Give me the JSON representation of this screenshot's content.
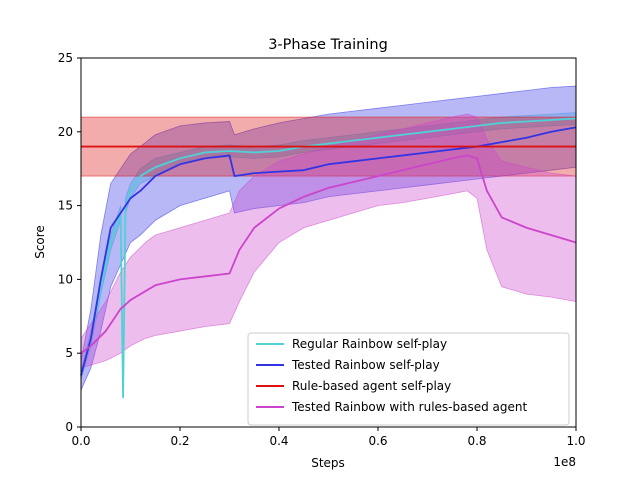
{
  "chart_data": {
    "type": "line",
    "title": "3-Phase Training",
    "xlabel": "Steps",
    "ylabel": "Score",
    "x_offset_label": "1e8",
    "xlim": [
      0,
      1.0
    ],
    "ylim": [
      0,
      25
    ],
    "xticks": [
      "0.0",
      "0.2",
      "0.4",
      "0.6",
      "0.8",
      "1.0"
    ],
    "yticks": [
      "0",
      "5",
      "10",
      "15",
      "20",
      "25"
    ],
    "grid": false,
    "legend_position": "lower-right",
    "series": [
      {
        "name": "Regular Rainbow self-play",
        "color": "#4fd1d6",
        "x": [
          0.0,
          0.02,
          0.04,
          0.06,
          0.08,
          0.085,
          0.09,
          0.1,
          0.12,
          0.15,
          0.2,
          0.25,
          0.3,
          0.35,
          0.4,
          0.45,
          0.5,
          0.55,
          0.6,
          0.65,
          0.7,
          0.75,
          0.8,
          0.85,
          0.9,
          0.95,
          1.0
        ],
        "mean": [
          3.5,
          6.0,
          9.5,
          12.5,
          14.5,
          2.0,
          15.0,
          16.0,
          17.0,
          17.6,
          18.2,
          18.6,
          18.7,
          18.6,
          18.7,
          19.0,
          19.2,
          19.4,
          19.6,
          19.8,
          20.0,
          20.2,
          20.4,
          20.6,
          20.7,
          20.8,
          20.9
        ],
        "lower": [
          3.2,
          5.5,
          9.0,
          12.0,
          14.0,
          2.0,
          14.5,
          15.5,
          16.5,
          17.0,
          17.8,
          18.2,
          18.3,
          18.2,
          18.3,
          18.6,
          18.8,
          19.0,
          19.2,
          19.4,
          19.6,
          19.8,
          20.0,
          20.2,
          20.3,
          20.4,
          20.5
        ],
        "upper": [
          3.8,
          6.5,
          10.0,
          13.0,
          15.0,
          2.0,
          15.5,
          16.5,
          17.5,
          18.2,
          18.6,
          19.0,
          19.1,
          19.0,
          19.1,
          19.4,
          19.6,
          19.8,
          20.0,
          20.2,
          20.4,
          20.6,
          20.8,
          21.0,
          21.1,
          21.2,
          21.3
        ]
      },
      {
        "name": "Tested Rainbow self-play",
        "color": "#3333e6",
        "x": [
          0.0,
          0.02,
          0.04,
          0.06,
          0.08,
          0.1,
          0.12,
          0.15,
          0.2,
          0.25,
          0.3,
          0.31,
          0.35,
          0.4,
          0.45,
          0.5,
          0.55,
          0.6,
          0.65,
          0.7,
          0.75,
          0.8,
          0.85,
          0.9,
          0.95,
          1.0
        ],
        "mean": [
          3.5,
          6.0,
          10.0,
          13.5,
          14.5,
          15.5,
          16.0,
          17.0,
          17.8,
          18.2,
          18.4,
          17.0,
          17.2,
          17.3,
          17.4,
          17.8,
          18.0,
          18.2,
          18.4,
          18.6,
          18.8,
          19.0,
          19.3,
          19.6,
          20.0,
          20.3
        ],
        "lower": [
          2.5,
          4.0,
          6.5,
          9.5,
          11.0,
          12.5,
          13.0,
          14.0,
          15.0,
          15.5,
          16.0,
          14.5,
          14.8,
          15.0,
          15.2,
          15.6,
          15.8,
          16.0,
          16.2,
          16.4,
          16.6,
          16.8,
          17.0,
          17.2,
          17.4,
          17.6
        ],
        "upper": [
          4.5,
          8.0,
          13.0,
          16.5,
          17.5,
          18.5,
          19.0,
          19.8,
          20.4,
          20.6,
          20.7,
          19.8,
          20.2,
          20.6,
          20.9,
          21.2,
          21.4,
          21.6,
          21.8,
          22.0,
          22.2,
          22.4,
          22.6,
          22.8,
          23.0,
          23.1
        ]
      },
      {
        "name": "Rule-based agent self-play",
        "color": "#dd1111",
        "x": [
          0.0,
          1.0
        ],
        "mean": [
          19.0,
          19.0
        ],
        "lower": [
          17.0,
          17.0
        ],
        "upper": [
          21.0,
          21.0
        ]
      },
      {
        "name": "Tested Rainbow with rules-based agent",
        "color": "#cc44cc",
        "x": [
          0.0,
          0.02,
          0.05,
          0.08,
          0.1,
          0.13,
          0.15,
          0.2,
          0.25,
          0.3,
          0.32,
          0.35,
          0.4,
          0.45,
          0.5,
          0.55,
          0.6,
          0.65,
          0.7,
          0.75,
          0.78,
          0.8,
          0.82,
          0.85,
          0.9,
          0.95,
          1.0
        ],
        "mean": [
          5.0,
          5.5,
          6.5,
          8.0,
          8.6,
          9.2,
          9.6,
          10.0,
          10.2,
          10.4,
          12.0,
          13.5,
          14.8,
          15.6,
          16.2,
          16.6,
          17.0,
          17.4,
          17.8,
          18.2,
          18.4,
          18.2,
          16.0,
          14.2,
          13.5,
          13.0,
          12.5
        ],
        "lower": [
          4.0,
          4.2,
          4.5,
          5.0,
          5.5,
          6.0,
          6.2,
          6.5,
          6.8,
          7.0,
          8.5,
          10.5,
          12.5,
          13.5,
          14.0,
          14.5,
          15.0,
          15.2,
          15.5,
          15.8,
          16.0,
          15.5,
          12.0,
          9.5,
          9.0,
          8.8,
          8.5
        ],
        "upper": [
          6.0,
          7.0,
          8.5,
          10.5,
          11.5,
          12.5,
          13.0,
          13.5,
          14.0,
          14.5,
          16.0,
          17.0,
          18.0,
          18.5,
          19.0,
          19.4,
          19.8,
          20.2,
          20.6,
          21.0,
          21.2,
          21.0,
          19.5,
          18.0,
          17.6,
          17.2,
          17.0
        ]
      }
    ]
  }
}
